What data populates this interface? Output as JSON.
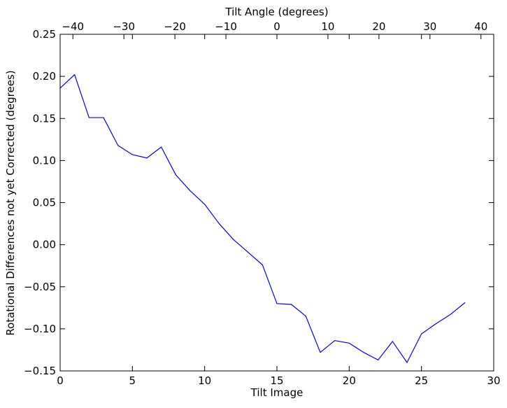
{
  "chart_data": {
    "type": "line",
    "title": "",
    "xlabel": "Tilt Image",
    "ylabel": "Rotational Differences not yet Corrected (degrees)",
    "x2label": "Tilt Angle (degrees)",
    "xlim": [
      0,
      30
    ],
    "ylim": [
      -0.15,
      0.25
    ],
    "x2lim": [
      -42.5,
      42.5
    ],
    "x_ticks": [
      {
        "value": 0,
        "label": "0"
      },
      {
        "value": 5,
        "label": "5"
      },
      {
        "value": 10,
        "label": "10"
      },
      {
        "value": 15,
        "label": "15"
      },
      {
        "value": 20,
        "label": "20"
      },
      {
        "value": 25,
        "label": "25"
      },
      {
        "value": 30,
        "label": "30"
      }
    ],
    "y_ticks": [
      {
        "value": -0.15,
        "label": "−0.15"
      },
      {
        "value": -0.1,
        "label": "−0.10"
      },
      {
        "value": -0.05,
        "label": "−0.05"
      },
      {
        "value": 0.0,
        "label": "0.00"
      },
      {
        "value": 0.05,
        "label": "0.05"
      },
      {
        "value": 0.1,
        "label": "0.10"
      },
      {
        "value": 0.15,
        "label": "0.15"
      },
      {
        "value": 0.2,
        "label": "0.20"
      },
      {
        "value": 0.25,
        "label": "0.25"
      }
    ],
    "x2_ticks": [
      {
        "value": -40,
        "label": "−40"
      },
      {
        "value": -30,
        "label": "−30"
      },
      {
        "value": -20,
        "label": "−20"
      },
      {
        "value": -10,
        "label": "−10"
      },
      {
        "value": 0,
        "label": "0"
      },
      {
        "value": 10,
        "label": "10"
      },
      {
        "value": 20,
        "label": "20"
      },
      {
        "value": 30,
        "label": "30"
      },
      {
        "value": 40,
        "label": "40"
      }
    ],
    "grid": false,
    "series": [
      {
        "color": "#0000ff",
        "x": [
          0,
          1,
          2,
          3,
          4,
          5,
          6,
          7,
          8,
          9,
          10,
          11,
          12,
          13,
          14,
          15,
          16,
          17,
          18,
          19,
          20,
          21,
          22,
          23,
          24,
          25,
          26,
          27,
          28
        ],
        "y": [
          0.186,
          0.202,
          0.151,
          0.151,
          0.118,
          0.107,
          0.103,
          0.116,
          0.083,
          0.064,
          0.048,
          0.025,
          0.006,
          -0.009,
          -0.024,
          -0.07,
          -0.071,
          -0.085,
          -0.128,
          -0.114,
          -0.117,
          -0.128,
          -0.137,
          -0.115,
          -0.14,
          -0.106,
          -0.094,
          -0.083,
          -0.069
        ]
      }
    ]
  }
}
